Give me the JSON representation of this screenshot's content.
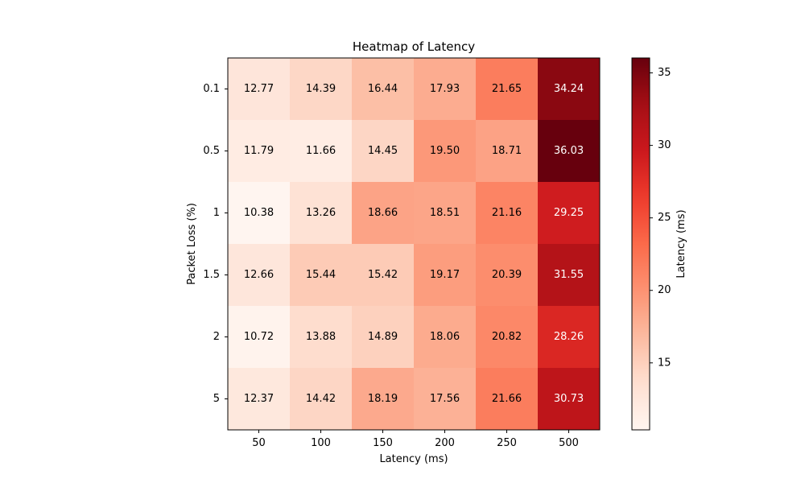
{
  "chart_data": {
    "type": "heatmap",
    "title": "Heatmap of Latency",
    "xlabel": "Latency (ms)",
    "ylabel": "Packet Loss (%)",
    "x_categories": [
      "50",
      "100",
      "150",
      "200",
      "250",
      "500"
    ],
    "y_categories": [
      "0.1",
      "0.5",
      "1",
      "1.5",
      "2",
      "5"
    ],
    "values": [
      [
        12.77,
        14.39,
        16.44,
        17.93,
        21.65,
        34.24
      ],
      [
        11.79,
        11.66,
        14.45,
        19.5,
        18.71,
        36.03
      ],
      [
        10.38,
        13.26,
        18.66,
        18.51,
        21.16,
        29.25
      ],
      [
        12.66,
        15.44,
        15.42,
        19.17,
        20.39,
        31.55
      ],
      [
        10.72,
        13.88,
        14.89,
        18.06,
        20.82,
        28.26
      ],
      [
        12.37,
        14.42,
        18.19,
        17.56,
        21.66,
        30.73
      ]
    ],
    "value_labels": [
      [
        "12.77",
        "14.39",
        "16.44",
        "17.93",
        "21.65",
        "34.24"
      ],
      [
        "11.79",
        "11.66",
        "14.45",
        "19.50",
        "18.71",
        "36.03"
      ],
      [
        "10.38",
        "13.26",
        "18.66",
        "18.51",
        "21.16",
        "29.25"
      ],
      [
        "12.66",
        "15.44",
        "15.42",
        "19.17",
        "20.39",
        "31.55"
      ],
      [
        "10.72",
        "13.88",
        "14.89",
        "18.06",
        "20.82",
        "28.26"
      ],
      [
        "12.37",
        "14.42",
        "18.19",
        "17.56",
        "21.66",
        "30.73"
      ]
    ],
    "colormap": "Reds",
    "color_range": [
      10.38,
      36.03
    ],
    "colorbar": {
      "label": "Latency (ms)",
      "ticks": [
        15,
        20,
        25,
        30,
        35
      ],
      "tick_labels": [
        "15",
        "20",
        "25",
        "30",
        "35"
      ]
    },
    "grid": false
  }
}
